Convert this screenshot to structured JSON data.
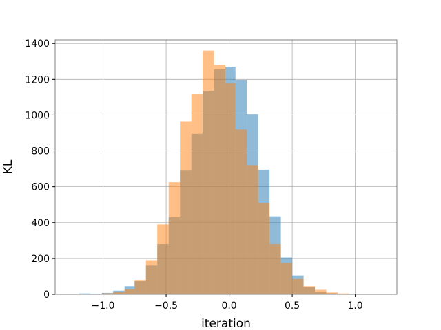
{
  "chart_data": {
    "type": "bar",
    "title": "",
    "xlabel": "iteration",
    "ylabel": "KL",
    "xlim": [
      -1.38,
      1.33
    ],
    "ylim": [
      0,
      1420
    ],
    "xticks": [
      -1.0,
      -0.5,
      0.0,
      0.5,
      1.0
    ],
    "xtick_labels": [
      "−1.0",
      "−0.5",
      "0.0",
      "0.5",
      "1.0"
    ],
    "yticks": [
      0,
      200,
      400,
      600,
      800,
      1000,
      1200,
      1400
    ],
    "ytick_labels": [
      "0",
      "200",
      "400",
      "600",
      "800",
      "1000",
      "1200",
      "1400"
    ],
    "grid": true,
    "legend": "none",
    "series": [
      {
        "color": "#1f77b4",
        "alpha": 0.5,
        "bins": [
          {
            "x0": -1.28,
            "x1": -1.19,
            "value": 1
          },
          {
            "x0": -1.19,
            "x1": -1.1,
            "value": 5
          },
          {
            "x0": -1.1,
            "x1": -1.01,
            "value": 3
          },
          {
            "x0": -1.01,
            "x1": -0.92,
            "value": 8
          },
          {
            "x0": -0.92,
            "x1": -0.83,
            "value": 20
          },
          {
            "x0": -0.83,
            "x1": -0.75,
            "value": 45
          },
          {
            "x0": -0.75,
            "x1": -0.66,
            "value": 75
          },
          {
            "x0": -0.66,
            "x1": -0.57,
            "value": 160
          },
          {
            "x0": -0.57,
            "x1": -0.48,
            "value": 280
          },
          {
            "x0": -0.48,
            "x1": -0.39,
            "value": 430
          },
          {
            "x0": -0.39,
            "x1": -0.3,
            "value": 690
          },
          {
            "x0": -0.3,
            "x1": -0.21,
            "value": 895
          },
          {
            "x0": -0.21,
            "x1": -0.12,
            "value": 1135
          },
          {
            "x0": -0.12,
            "x1": -0.03,
            "value": 1255
          },
          {
            "x0": -0.03,
            "x1": 0.05,
            "value": 1270
          },
          {
            "x0": 0.05,
            "x1": 0.14,
            "value": 1195
          },
          {
            "x0": 0.14,
            "x1": 0.23,
            "value": 1005
          },
          {
            "x0": 0.23,
            "x1": 0.32,
            "value": 695
          },
          {
            "x0": 0.32,
            "x1": 0.41,
            "value": 435
          },
          {
            "x0": 0.41,
            "x1": 0.5,
            "value": 205
          },
          {
            "x0": 0.5,
            "x1": 0.59,
            "value": 105
          },
          {
            "x0": 0.59,
            "x1": 0.68,
            "value": 40
          },
          {
            "x0": 0.68,
            "x1": 0.77,
            "value": 15
          },
          {
            "x0": 0.77,
            "x1": 0.86,
            "value": 6
          },
          {
            "x0": 0.86,
            "x1": 0.95,
            "value": 2
          },
          {
            "x0": 0.95,
            "x1": 1.04,
            "value": 1
          },
          {
            "x0": 1.04,
            "x1": 1.13,
            "value": 0
          },
          {
            "x0": 1.13,
            "x1": 1.22,
            "value": 1
          }
        ]
      },
      {
        "color": "#ff7f0e",
        "alpha": 0.5,
        "bins": [
          {
            "x0": -1.1,
            "x1": -1.01,
            "value": 1
          },
          {
            "x0": -1.01,
            "x1": -0.92,
            "value": 5
          },
          {
            "x0": -0.92,
            "x1": -0.83,
            "value": 12
          },
          {
            "x0": -0.83,
            "x1": -0.75,
            "value": 28
          },
          {
            "x0": -0.75,
            "x1": -0.66,
            "value": 80
          },
          {
            "x0": -0.66,
            "x1": -0.57,
            "value": 190
          },
          {
            "x0": -0.57,
            "x1": -0.48,
            "value": 390
          },
          {
            "x0": -0.48,
            "x1": -0.39,
            "value": 625
          },
          {
            "x0": -0.39,
            "x1": -0.3,
            "value": 965
          },
          {
            "x0": -0.3,
            "x1": -0.21,
            "value": 1120
          },
          {
            "x0": -0.21,
            "x1": -0.12,
            "value": 1360
          },
          {
            "x0": -0.12,
            "x1": -0.03,
            "value": 1280
          },
          {
            "x0": -0.03,
            "x1": 0.05,
            "value": 1180
          },
          {
            "x0": 0.05,
            "x1": 0.14,
            "value": 920
          },
          {
            "x0": 0.14,
            "x1": 0.23,
            "value": 720
          },
          {
            "x0": 0.23,
            "x1": 0.32,
            "value": 510
          },
          {
            "x0": 0.32,
            "x1": 0.41,
            "value": 280
          },
          {
            "x0": 0.41,
            "x1": 0.5,
            "value": 175
          },
          {
            "x0": 0.5,
            "x1": 0.59,
            "value": 85
          },
          {
            "x0": 0.59,
            "x1": 0.68,
            "value": 45
          },
          {
            "x0": 0.68,
            "x1": 0.77,
            "value": 25
          },
          {
            "x0": 0.77,
            "x1": 0.86,
            "value": 10
          },
          {
            "x0": 0.86,
            "x1": 0.95,
            "value": 5
          },
          {
            "x0": 0.95,
            "x1": 1.04,
            "value": 2
          }
        ]
      }
    ]
  }
}
